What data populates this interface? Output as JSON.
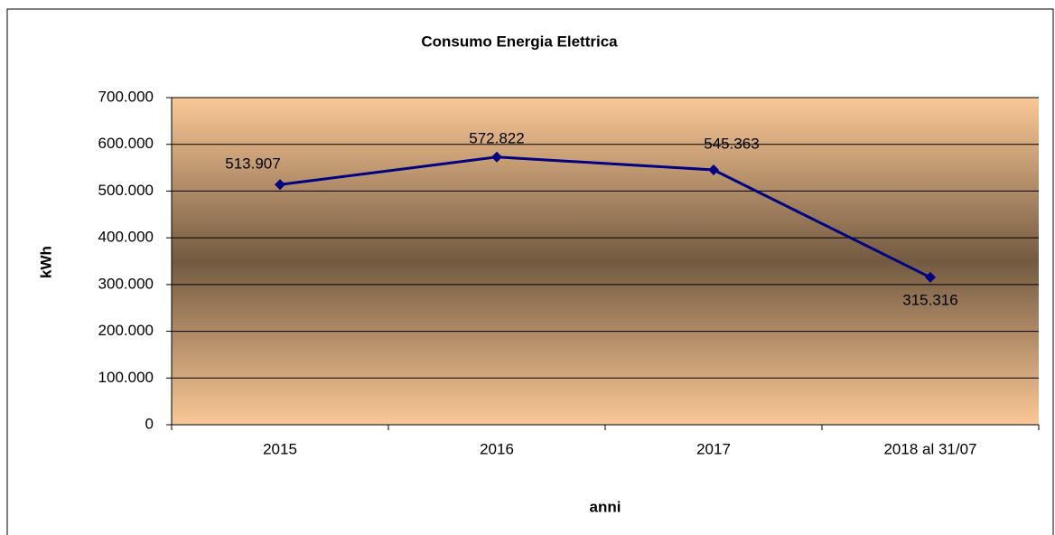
{
  "chart_data": {
    "type": "line",
    "title": "Consumo Energia Elettrica",
    "x_label": "anni",
    "y_label": "kWh",
    "categories": [
      "2015",
      "2016",
      "2017",
      "2018 al 31/07"
    ],
    "series": [
      {
        "name": "kWh",
        "color": "#000080",
        "values": [
          513907,
          572822,
          545363,
          315316
        ],
        "value_labels": [
          "513.907",
          "572.822",
          "545.363",
          "315.316"
        ]
      }
    ],
    "ylim": [
      0,
      700000
    ],
    "yticks": [
      0,
      {
        "value": 100000,
        "label": "100.000"
      },
      {
        "value": 200000,
        "label": "200.000"
      },
      {
        "value": 300000,
        "label": "300.000"
      },
      {
        "value": 400000,
        "label": "400.000"
      },
      {
        "value": 500000,
        "label": "500.000"
      },
      {
        "value": 600000,
        "label": "600.000"
      },
      {
        "value": 700000,
        "label": "700.000"
      }
    ],
    "grid": true,
    "legend": false
  }
}
